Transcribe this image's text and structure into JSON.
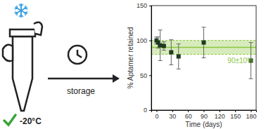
{
  "chart_data": {
    "type": "scatter",
    "x_label": "Time (days)",
    "y_label": "% Aptamer retained",
    "x": [
      0,
      3,
      7,
      14,
      28,
      42,
      90,
      180
    ],
    "values": [
      100,
      97,
      93,
      92,
      83,
      77,
      97,
      71
    ],
    "errors": [
      5,
      8,
      22,
      6,
      18,
      18,
      22,
      26
    ],
    "color": "#1f3a1f",
    "marker": "square",
    "xlim": [
      -10,
      190
    ],
    "xticks": [
      0,
      30,
      60,
      90,
      120,
      150,
      180
    ],
    "ylim": [
      0,
      150
    ],
    "yticks": [
      0,
      50,
      100,
      150
    ],
    "band": {
      "lower": 80,
      "upper": 100,
      "center": 90,
      "label": "90±10%",
      "color": "#8cc63f"
    }
  },
  "illustration": {
    "action": "storage",
    "temperature": "-20°C"
  }
}
